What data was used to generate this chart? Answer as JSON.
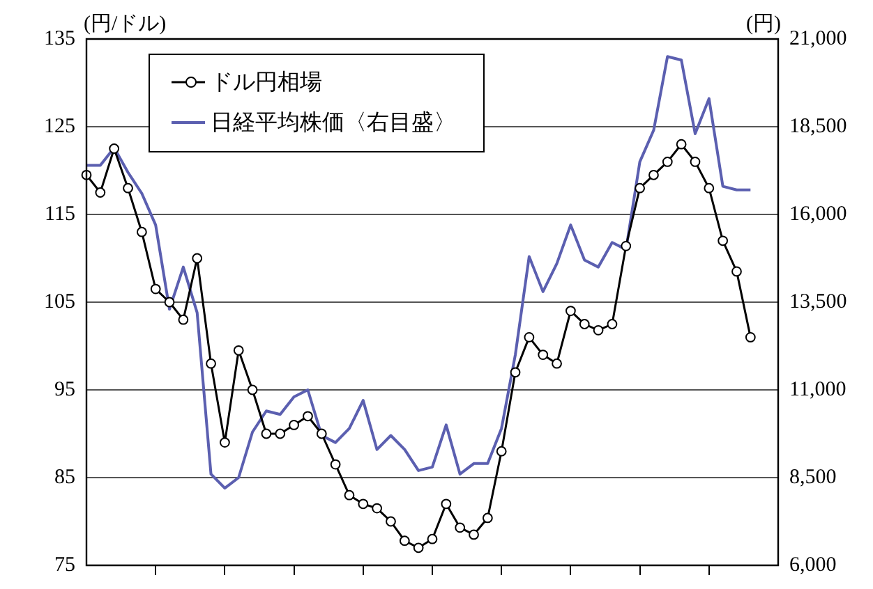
{
  "chart_data": {
    "type": "line",
    "ylabel": "(円/ドル)",
    "y2label": "(円)",
    "categories": [
      null,
      null,
      null,
      null,
      null,
      null,
      null,
      null,
      null,
      null,
      null,
      null,
      null,
      null,
      null,
      null,
      null,
      null,
      null,
      null,
      null,
      null,
      null,
      null,
      null,
      null,
      null,
      null,
      null,
      null,
      null,
      null,
      null,
      null,
      null,
      null,
      null,
      null,
      null,
      null,
      null,
      null,
      null,
      null,
      null,
      null,
      null,
      null,
      null,
      null,
      null
    ],
    "series": [
      {
        "name": "ドル円相場",
        "color": "#000000",
        "marker": "circle",
        "values": [
          119.5,
          117.5,
          122.5,
          118,
          113,
          106.5,
          105,
          103,
          110,
          98,
          89,
          99.5,
          95,
          90,
          90,
          91,
          92,
          90,
          86.5,
          83,
          82,
          81.5,
          80,
          77.8,
          77,
          78,
          82,
          79.3,
          78.5,
          80.4,
          88,
          97,
          101,
          99,
          98,
          104,
          102.5,
          101.8,
          102.5,
          111.4,
          118,
          119.5,
          121,
          123,
          121,
          118,
          112,
          108.5,
          101,
          null,
          null
        ]
      },
      {
        "name": "日経平均株価〈右目盛〉",
        "color": "#5b5fb0",
        "axis": "y2",
        "marker": "none",
        "values": [
          17400,
          17400,
          17900,
          17200,
          16600,
          15700,
          13300,
          14500,
          13200,
          8600,
          8200,
          8500,
          9800,
          10400,
          10300,
          10800,
          11000,
          9700,
          9500,
          9900,
          10700,
          9300,
          9700,
          9300,
          8700,
          8800,
          10000,
          8600,
          8900,
          8900,
          9900,
          12000,
          14800,
          13800,
          14600,
          15700,
          14700,
          14500,
          15200,
          15000,
          17500,
          18400,
          20500,
          20400,
          18300,
          19300,
          16800,
          16700,
          16700,
          null,
          null
        ]
      }
    ],
    "ylim": [
      75,
      135
    ],
    "yticks": [
      75,
      85,
      95,
      105,
      115,
      125,
      135
    ],
    "y2lim": [
      6000,
      21000
    ],
    "y2ticks": [
      {
        "value": 6000,
        "label": "6,000"
      },
      {
        "value": 8500,
        "label": "8,500"
      },
      {
        "value": 11000,
        "label": "11,000"
      },
      {
        "value": 13500,
        "label": "13,500"
      },
      {
        "value": 16000,
        "label": "16,000"
      },
      {
        "value": 18500,
        "label": "18,500"
      },
      {
        "value": 21000,
        "label": "21,000"
      }
    ],
    "grid": "y",
    "legend": "top left",
    "tick_labels": "y"
  }
}
